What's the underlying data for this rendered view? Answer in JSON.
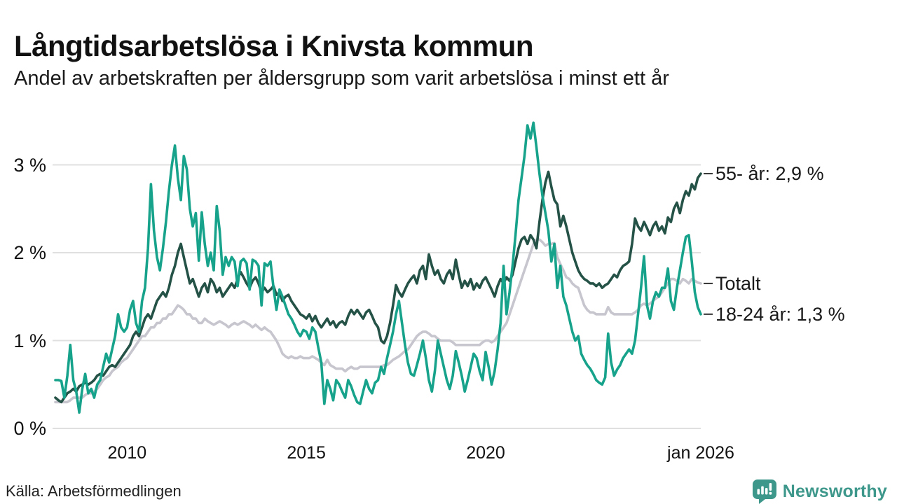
{
  "header": {
    "title": "Långtidsarbetslösa i Knivsta kommun",
    "subtitle": "Andel av arbetskraften per åldersgrupp som varit arbetslösa i minst ett år"
  },
  "footer": {
    "source": "Källa: Arbetsförmedlingen",
    "brand_name": "Newsworthy",
    "brand_color": "#3e978b",
    "brand_icon": "bar-chart-speech-bubble-icon"
  },
  "colors": {
    "grid": "#e0e0e0",
    "axis_text": "#111111",
    "annotation_tick": "#333333"
  },
  "chart_data": {
    "type": "line",
    "title": "Långtidsarbetslösa i Knivsta kommun",
    "subtitle": "Andel av arbetskraften per åldersgrupp som varit arbetslösa i minst ett år",
    "x_unit": "month",
    "xlim": [
      2008.0,
      2026.0
    ],
    "ylim": [
      0,
      3.55
    ],
    "grid": "horizontal-only",
    "legend_position": "right-end-labels",
    "y_ticks": [
      {
        "value": 0,
        "label": "0 %"
      },
      {
        "value": 1,
        "label": "1 %"
      },
      {
        "value": 2,
        "label": "2 %"
      },
      {
        "value": 3,
        "label": "3 %"
      }
    ],
    "x_ticks": [
      {
        "year": 2010,
        "label": "2010"
      },
      {
        "year": 2015,
        "label": "2015"
      },
      {
        "year": 2020,
        "label": "2020"
      },
      {
        "year": 2026,
        "label": "jan 2026"
      }
    ],
    "series": [
      {
        "name": "Totalt",
        "end_label": "Totalt",
        "end_value": 1.65,
        "color": "#c7c5ce",
        "values": [
          0.3,
          0.3,
          0.3,
          0.3,
          0.3,
          0.32,
          0.35,
          0.35,
          0.35,
          0.35,
          0.38,
          0.4,
          0.4,
          0.42,
          0.45,
          0.5,
          0.55,
          0.58,
          0.6,
          0.65,
          0.68,
          0.7,
          0.75,
          0.78,
          0.8,
          0.85,
          0.9,
          0.95,
          1.0,
          1.05,
          1.05,
          1.1,
          1.15,
          1.15,
          1.2,
          1.2,
          1.25,
          1.25,
          1.3,
          1.3,
          1.35,
          1.4,
          1.38,
          1.35,
          1.3,
          1.3,
          1.25,
          1.25,
          1.2,
          1.2,
          1.25,
          1.22,
          1.2,
          1.18,
          1.2,
          1.22,
          1.2,
          1.18,
          1.15,
          1.18,
          1.2,
          1.18,
          1.2,
          1.22,
          1.2,
          1.18,
          1.15,
          1.18,
          1.15,
          1.12,
          1.15,
          1.12,
          1.1,
          1.05,
          1.0,
          0.93,
          0.85,
          0.82,
          0.8,
          0.82,
          0.8,
          0.8,
          0.82,
          0.8,
          0.8,
          0.8,
          0.82,
          0.8,
          0.78,
          0.75,
          0.72,
          0.78,
          0.72,
          0.7,
          0.68,
          0.68,
          0.68,
          0.65,
          0.68,
          0.7,
          0.68,
          0.68,
          0.7,
          0.7,
          0.7,
          0.7,
          0.7,
          0.7,
          0.7,
          0.7,
          0.72,
          0.72,
          0.75,
          0.78,
          0.8,
          0.82,
          0.85,
          0.88,
          0.9,
          0.95,
          1.0,
          1.05,
          1.08,
          1.1,
          1.1,
          1.08,
          1.05,
          1.05,
          1.02,
          1.0,
          1.0,
          1.0,
          1.0,
          0.98,
          0.95,
          0.95,
          0.95,
          0.95,
          0.95,
          0.95,
          0.95,
          0.95,
          0.95,
          0.98,
          1.0,
          1.0,
          0.98,
          1.0,
          1.05,
          1.1,
          1.15,
          1.2,
          1.3,
          1.4,
          1.5,
          1.6,
          1.7,
          1.8,
          1.9,
          2.0,
          2.1,
          2.15,
          2.15,
          2.12,
          2.08,
          2.1,
          2.1,
          2.11,
          1.95,
          1.87,
          1.8,
          1.72,
          1.7,
          1.65,
          1.62,
          1.6,
          1.5,
          1.4,
          1.35,
          1.32,
          1.32,
          1.3,
          1.3,
          1.3,
          1.3,
          1.38,
          1.32,
          1.3,
          1.3,
          1.3,
          1.3,
          1.3,
          1.3,
          1.3,
          1.32,
          1.35,
          1.4,
          1.42,
          1.4,
          1.42,
          1.45,
          1.48,
          1.5,
          1.55,
          1.6,
          1.65,
          1.7,
          1.7,
          1.68,
          1.65,
          1.7,
          1.68,
          1.65,
          1.7,
          1.68,
          1.66,
          1.65
        ]
      },
      {
        "name": "55- år",
        "end_label": "55- år: 2,9 %",
        "end_value": 2.9,
        "color": "#255246",
        "values": [
          0.35,
          0.32,
          0.3,
          0.35,
          0.4,
          0.42,
          0.45,
          0.42,
          0.48,
          0.5,
          0.52,
          0.5,
          0.52,
          0.55,
          0.6,
          0.62,
          0.6,
          0.65,
          0.7,
          0.72,
          0.7,
          0.75,
          0.8,
          0.85,
          0.9,
          0.95,
          1.05,
          1.1,
          1.05,
          1.15,
          1.25,
          1.3,
          1.25,
          1.35,
          1.45,
          1.5,
          1.55,
          1.5,
          1.6,
          1.75,
          1.85,
          2.0,
          2.1,
          1.95,
          1.8,
          1.65,
          1.7,
          1.6,
          1.5,
          1.6,
          1.65,
          1.55,
          1.7,
          1.65,
          1.55,
          1.6,
          1.5,
          1.55,
          1.6,
          1.65,
          1.6,
          1.7,
          1.78,
          1.72,
          1.65,
          1.6,
          1.68,
          1.72,
          1.65,
          1.55,
          1.6,
          1.55,
          1.58,
          1.62,
          1.52,
          1.55,
          1.45,
          1.5,
          1.52,
          1.45,
          1.4,
          1.35,
          1.3,
          1.28,
          1.25,
          1.3,
          1.22,
          1.28,
          1.2,
          1.15,
          1.2,
          1.25,
          1.18,
          1.22,
          1.15,
          1.2,
          1.22,
          1.18,
          1.28,
          1.35,
          1.3,
          1.35,
          1.3,
          1.25,
          1.32,
          1.35,
          1.28,
          1.2,
          1.15,
          1.0,
          0.97,
          1.05,
          1.2,
          1.4,
          1.63,
          1.55,
          1.5,
          1.58,
          1.65,
          1.7,
          1.74,
          1.65,
          1.8,
          1.85,
          1.7,
          1.98,
          1.85,
          1.75,
          1.8,
          1.7,
          1.65,
          1.75,
          1.8,
          1.7,
          1.92,
          1.75,
          1.6,
          1.68,
          1.62,
          1.7,
          1.58,
          1.65,
          1.6,
          1.68,
          1.72,
          1.65,
          1.58,
          1.5,
          1.62,
          1.7,
          1.65,
          1.72,
          1.68,
          1.75,
          1.9,
          2.05,
          2.15,
          2.18,
          2.1,
          2.2,
          2.15,
          2.05,
          2.35,
          2.6,
          2.8,
          2.92,
          2.75,
          2.6,
          2.55,
          2.3,
          2.42,
          2.3,
          2.15,
          2.0,
          1.9,
          1.8,
          1.74,
          1.7,
          1.68,
          1.65,
          1.65,
          1.62,
          1.65,
          1.6,
          1.63,
          1.65,
          1.7,
          1.75,
          1.72,
          1.8,
          1.85,
          1.87,
          1.9,
          2.1,
          2.39,
          2.3,
          2.25,
          2.35,
          2.28,
          2.2,
          2.3,
          2.35,
          2.25,
          2.3,
          2.22,
          2.4,
          2.35,
          2.5,
          2.57,
          2.45,
          2.6,
          2.7,
          2.65,
          2.78,
          2.72,
          2.85,
          2.9
        ]
      },
      {
        "name": "18-24 år",
        "end_label": "18-24 år: 1,3 %",
        "end_value": 1.3,
        "color": "#17a38b",
        "values": [
          0.55,
          0.55,
          0.54,
          0.35,
          0.6,
          0.95,
          0.55,
          0.42,
          0.18,
          0.45,
          0.62,
          0.4,
          0.45,
          0.35,
          0.5,
          0.55,
          0.7,
          0.85,
          0.75,
          0.9,
          1.05,
          1.3,
          1.15,
          1.1,
          1.15,
          1.35,
          1.45,
          1.2,
          1.1,
          1.45,
          1.6,
          2.05,
          2.78,
          2.25,
          1.95,
          1.8,
          2.05,
          2.35,
          2.7,
          3.0,
          3.22,
          2.85,
          2.6,
          3.1,
          2.95,
          2.5,
          2.3,
          2.45,
          1.91,
          2.46,
          2.1,
          1.85,
          2.0,
          1.8,
          2.53,
          2.25,
          1.75,
          1.95,
          1.85,
          1.95,
          1.9,
          1.62,
          1.9,
          1.93,
          1.88,
          1.58,
          1.92,
          1.9,
          1.85,
          1.4,
          1.88,
          1.85,
          1.9,
          1.6,
          1.35,
          1.58,
          1.5,
          1.4,
          1.3,
          1.25,
          1.18,
          1.1,
          1.05,
          1.12,
          1.1,
          1.02,
          1.15,
          1.1,
          0.92,
          0.75,
          0.28,
          0.55,
          0.45,
          0.32,
          0.55,
          0.5,
          0.42,
          0.35,
          0.55,
          0.48,
          0.38,
          0.3,
          0.28,
          0.42,
          0.55,
          0.45,
          0.4,
          0.52,
          0.55,
          0.7,
          0.62,
          0.8,
          0.95,
          1.1,
          1.3,
          1.45,
          1.2,
          0.95,
          0.75,
          0.62,
          0.6,
          0.72,
          0.85,
          1.0,
          0.8,
          0.55,
          0.42,
          0.65,
          1.0,
          0.85,
          0.7,
          0.55,
          0.45,
          0.6,
          0.88,
          0.75,
          0.6,
          0.42,
          0.55,
          0.7,
          0.85,
          0.8,
          0.65,
          0.55,
          0.87,
          0.7,
          0.5,
          0.65,
          0.9,
          1.2,
          1.85,
          1.3,
          1.55,
          1.85,
          2.2,
          2.6,
          2.85,
          3.1,
          3.45,
          3.3,
          3.48,
          3.2,
          2.9,
          2.65,
          2.45,
          2.25,
          1.9,
          2.1,
          1.6,
          1.85,
          1.5,
          1.4,
          1.25,
          1.1,
          1.0,
          1.05,
          0.85,
          0.78,
          0.72,
          0.68,
          0.62,
          0.55,
          0.52,
          0.5,
          0.58,
          1.08,
          0.75,
          0.6,
          0.67,
          0.72,
          0.8,
          0.85,
          0.9,
          0.85,
          1.0,
          1.3,
          1.6,
          1.96,
          1.4,
          1.25,
          1.45,
          1.55,
          1.5,
          1.6,
          1.6,
          1.82,
          1.45,
          1.35,
          1.6,
          1.8,
          2.0,
          2.18,
          2.2,
          1.9,
          1.55,
          1.38,
          1.3
        ]
      }
    ]
  }
}
